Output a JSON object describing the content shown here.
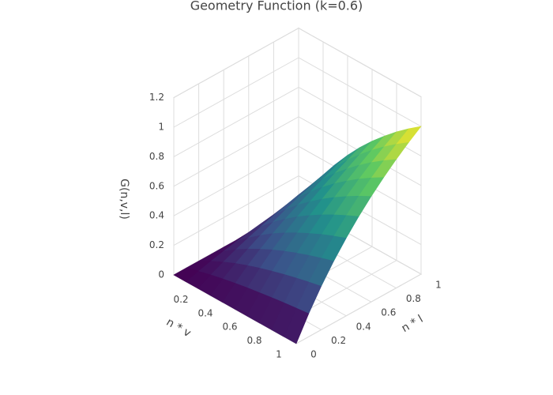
{
  "chart_data": {
    "type": "surface",
    "title": "Geometry Function (k=0.6)",
    "xlabel": "n * v",
    "ylabel": "n * l",
    "zlabel": "G(n,v,l)",
    "x": [
      0,
      0.1,
      0.2,
      0.3,
      0.4,
      0.5,
      0.6,
      0.7,
      0.8,
      0.9,
      1
    ],
    "y": [
      0,
      0.1,
      0.2,
      0.3,
      0.4,
      0.5,
      0.6,
      0.7,
      0.8,
      0.9,
      1
    ],
    "z": [
      [
        0,
        0,
        0,
        0,
        0,
        0,
        0,
        0,
        0,
        0,
        0
      ],
      [
        0,
        0.024,
        0.046,
        0.065,
        0.082,
        0.098,
        0.111,
        0.124,
        0.136,
        0.146,
        0.156
      ],
      [
        0,
        0.046,
        0.086,
        0.123,
        0.155,
        0.184,
        0.21,
        0.234,
        0.256,
        0.276,
        0.294
      ],
      [
        0,
        0.065,
        0.123,
        0.174,
        0.219,
        0.261,
        0.298,
        0.332,
        0.363,
        0.391,
        0.417
      ],
      [
        0,
        0.082,
        0.155,
        0.219,
        0.277,
        0.329,
        0.376,
        0.418,
        0.458,
        0.493,
        0.526
      ],
      [
        0,
        0.098,
        0.184,
        0.261,
        0.329,
        0.391,
        0.446,
        0.497,
        0.544,
        0.586,
        0.625
      ],
      [
        0,
        0.111,
        0.21,
        0.298,
        0.376,
        0.446,
        0.51,
        0.568,
        0.621,
        0.67,
        0.714
      ],
      [
        0,
        0.124,
        0.234,
        0.332,
        0.418,
        0.497,
        0.568,
        0.632,
        0.692,
        0.746,
        0.795
      ],
      [
        0,
        0.136,
        0.256,
        0.363,
        0.458,
        0.544,
        0.621,
        0.692,
        0.757,
        0.816,
        0.87
      ],
      [
        0,
        0.146,
        0.276,
        0.391,
        0.493,
        0.586,
        0.67,
        0.746,
        0.816,
        0.88,
        0.938
      ],
      [
        0,
        0.156,
        0.294,
        0.417,
        0.526,
        0.625,
        0.714,
        0.795,
        0.87,
        0.938,
        1
      ]
    ],
    "xlim": [
      0,
      1
    ],
    "ylim": [
      0,
      1
    ],
    "zlim": [
      0,
      1.2
    ],
    "xticks": [
      0.2,
      0.4,
      0.6,
      0.8,
      1
    ],
    "yticks": [
      0,
      0.2,
      0.4,
      0.6,
      0.8,
      1
    ],
    "zticks": [
      0,
      0.2,
      0.4,
      0.6,
      0.8,
      1,
      1.2
    ],
    "colorscale": [
      "#440154",
      "#3b528b",
      "#21918c",
      "#5ec962",
      "#fde725"
    ],
    "grid": true
  }
}
